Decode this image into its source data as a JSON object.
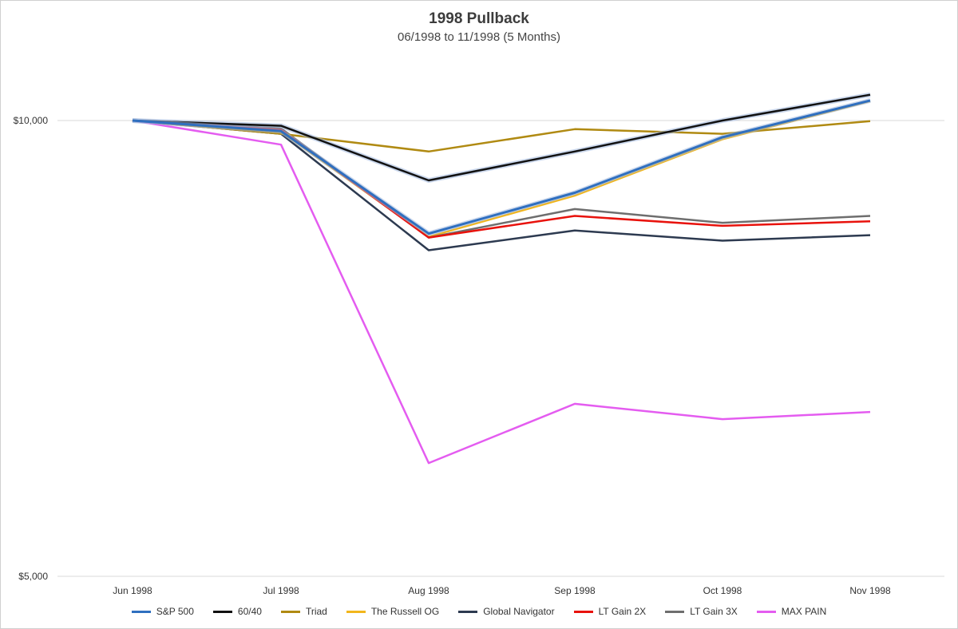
{
  "chart_data": {
    "type": "line",
    "title": "1998 Pullback",
    "subtitle": "06/1998 to 11/1998 (5 Months)",
    "xlabel": "",
    "ylabel": "",
    "y_scale": "log",
    "ylim": [
      5000,
      10000
    ],
    "y_ticks": [
      "$10,000",
      "$5,000"
    ],
    "grid": "horizontal",
    "legend_position": "bottom",
    "categories": [
      "Jun 1998",
      "Jul 1998",
      "Aug 1998",
      "Sep 1998",
      "Oct 1998",
      "Nov 1998"
    ],
    "series": [
      {
        "name": "S&P 500",
        "color": "#2f6fbf",
        "glow": true,
        "values": [
          10000,
          9840,
          8420,
          8960,
          9750,
          10310
        ]
      },
      {
        "name": "60/40",
        "color": "#111111",
        "glow": true,
        "values": [
          10000,
          9920,
          9130,
          9540,
          10000,
          10400
        ]
      },
      {
        "name": "Triad",
        "color": "#b08a12",
        "values": [
          10000,
          9800,
          9540,
          9870,
          9800,
          9990
        ]
      },
      {
        "name": "The Russell OG",
        "color": "#f2b61c",
        "values": [
          10000,
          9830,
          8380,
          8920,
          9720,
          10300
        ]
      },
      {
        "name": "Global Navigator",
        "color": "#2d3a50",
        "values": [
          10000,
          9800,
          8210,
          8460,
          8330,
          8400
        ]
      },
      {
        "name": "LT Gain 2X",
        "color": "#e8120c",
        "values": [
          10000,
          9860,
          8370,
          8650,
          8520,
          8580
        ]
      },
      {
        "name": "LT Gain 3X",
        "color": "#6e6e6e",
        "values": [
          10000,
          9880,
          8370,
          8740,
          8560,
          8650
        ]
      },
      {
        "name": "MAX PAIN",
        "color": "#e45cf0",
        "values": [
          10000,
          9640,
          5940,
          6500,
          6350,
          6420
        ]
      }
    ]
  }
}
